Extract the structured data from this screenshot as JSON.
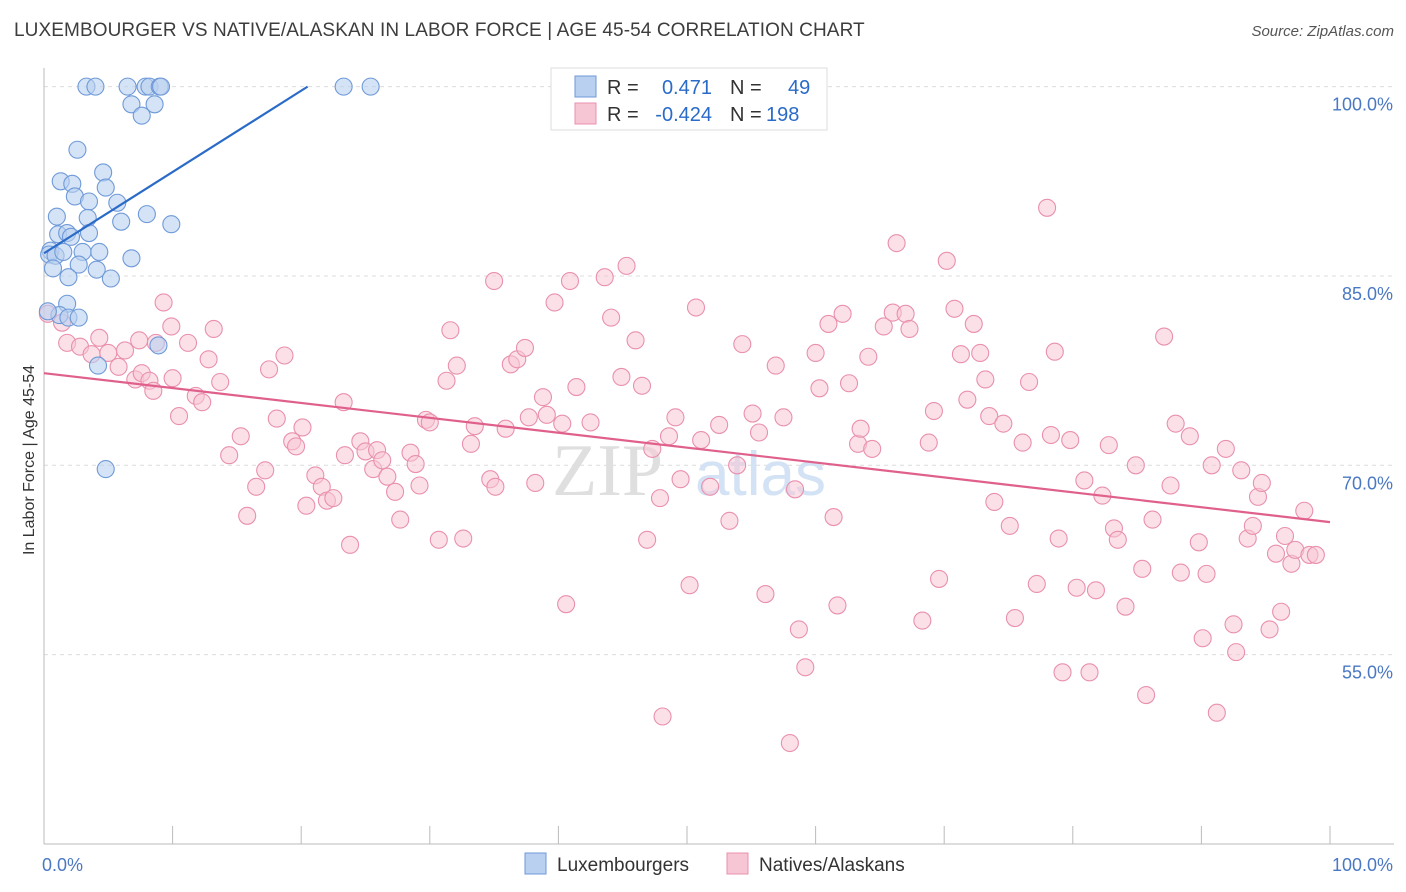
{
  "title": "LUXEMBOURGER VS NATIVE/ALASKAN IN LABOR FORCE | AGE 45-54 CORRELATION CHART",
  "source": "Source: ZipAtlas.com",
  "watermark": {
    "zip": "ZIP",
    "atlas": "atlas"
  },
  "colors": {
    "blue_fill": "#b9d0f0",
    "blue_stroke": "#6f9ad8",
    "blue_line": "#2a6bc8",
    "pink_fill": "#f7c6d5",
    "pink_stroke": "#e990ad",
    "pink_line": "#e0608c",
    "tick_text": "#4a78c2",
    "grid": "#dcdcdc"
  },
  "chart_data": {
    "type": "scatter",
    "ylabel": "In Labor Force | Age 45-54",
    "xlim": [
      0,
      100
    ],
    "ylim": [
      40,
      101
    ],
    "x_tick_labels": [
      {
        "value": 0,
        "label": "0.0%"
      },
      {
        "value": 100,
        "label": "100.0%"
      }
    ],
    "y_ticks": [
      {
        "value": 100,
        "label": "100.0%"
      },
      {
        "value": 85,
        "label": "85.0%"
      },
      {
        "value": 70,
        "label": "70.0%"
      },
      {
        "value": 55,
        "label": "55.0%"
      }
    ],
    "legend": {
      "rows": [
        {
          "r_label": "R =",
          "r_value": "0.471",
          "n_label": "N =",
          "n_value": "49"
        },
        {
          "r_label": "R =",
          "r_value": "-0.424",
          "n_label": "N =",
          "n_value": "198"
        }
      ]
    },
    "series": [
      {
        "name": "Luxemburgers",
        "trend": {
          "x1": 0,
          "y1": 86.8,
          "x2": 20.5,
          "y2": 100
        },
        "points": [
          [
            3.3,
            100
          ],
          [
            4,
            100
          ],
          [
            6.5,
            100
          ],
          [
            7.9,
            100
          ],
          [
            8.2,
            100
          ],
          [
            9,
            100
          ],
          [
            9.1,
            100
          ],
          [
            23.3,
            100
          ],
          [
            25.4,
            100
          ],
          [
            6.8,
            98.6
          ],
          [
            8.6,
            98.6
          ],
          [
            7.6,
            97.7
          ],
          [
            2.6,
            95
          ],
          [
            4.6,
            93.2
          ],
          [
            1.3,
            92.5
          ],
          [
            2.2,
            92.3
          ],
          [
            2.4,
            91.3
          ],
          [
            3.5,
            90.9
          ],
          [
            4.8,
            92
          ],
          [
            5.7,
            90.8
          ],
          [
            1,
            89.7
          ],
          [
            3.4,
            89.6
          ],
          [
            6,
            89.3
          ],
          [
            8,
            89.9
          ],
          [
            9.9,
            89.1
          ],
          [
            1.1,
            88.3
          ],
          [
            1.8,
            88.4
          ],
          [
            3.5,
            88.4
          ],
          [
            2.1,
            88.1
          ],
          [
            0.5,
            87
          ],
          [
            0.4,
            86.7
          ],
          [
            0.9,
            86.6
          ],
          [
            1.5,
            86.9
          ],
          [
            3,
            86.9
          ],
          [
            4.3,
            86.9
          ],
          [
            6.8,
            86.4
          ],
          [
            0.7,
            85.6
          ],
          [
            2.7,
            85.9
          ],
          [
            4.1,
            85.5
          ],
          [
            5.2,
            84.8
          ],
          [
            1.9,
            84.9
          ],
          [
            1.8,
            82.8
          ],
          [
            1.2,
            81.9
          ],
          [
            1.9,
            81.7
          ],
          [
            2.7,
            81.7
          ],
          [
            8.9,
            79.5
          ],
          [
            4.2,
            77.9
          ],
          [
            4.8,
            69.7
          ],
          [
            0.3,
            82.2
          ]
        ]
      },
      {
        "name": "Natives/Alaskans",
        "trend": {
          "x1": 0,
          "y1": 77.3,
          "x2": 100,
          "y2": 65.5
        },
        "points": [
          [
            0.3,
            82
          ],
          [
            1.4,
            81.3
          ],
          [
            1.8,
            79.7
          ],
          [
            2.8,
            79.4
          ],
          [
            3.7,
            78.8
          ],
          [
            4.3,
            80.1
          ],
          [
            5,
            78.9
          ],
          [
            5.8,
            77.8
          ],
          [
            6.3,
            79.1
          ],
          [
            7.1,
            76.8
          ],
          [
            7.6,
            77.3
          ],
          [
            7.4,
            79.9
          ],
          [
            8.2,
            76.7
          ],
          [
            8.5,
            75.9
          ],
          [
            8.7,
            79.7
          ],
          [
            9.3,
            82.9
          ],
          [
            9.9,
            81
          ],
          [
            10,
            76.9
          ],
          [
            10.5,
            73.9
          ],
          [
            11.2,
            79.7
          ],
          [
            11.8,
            75.5
          ],
          [
            12.3,
            75
          ],
          [
            12.8,
            78.4
          ],
          [
            13.2,
            80.8
          ],
          [
            13.7,
            76.6
          ],
          [
            14.4,
            70.8
          ],
          [
            15.3,
            72.3
          ],
          [
            15.8,
            66
          ],
          [
            16.5,
            68.3
          ],
          [
            17.2,
            69.6
          ],
          [
            17.5,
            77.6
          ],
          [
            18.1,
            73.7
          ],
          [
            18.7,
            78.7
          ],
          [
            19.3,
            71.9
          ],
          [
            19.6,
            71.5
          ],
          [
            20.1,
            73
          ],
          [
            20.4,
            66.8
          ],
          [
            21.1,
            69.2
          ],
          [
            21.6,
            68.3
          ],
          [
            22,
            67.2
          ],
          [
            22.5,
            67.4
          ],
          [
            23.3,
            75
          ],
          [
            23.4,
            70.8
          ],
          [
            23.8,
            63.7
          ],
          [
            24.6,
            71.9
          ],
          [
            25,
            71.1
          ],
          [
            25.6,
            69.7
          ],
          [
            25.9,
            71.2
          ],
          [
            26.3,
            70.4
          ],
          [
            26.7,
            69.1
          ],
          [
            27.3,
            67.9
          ],
          [
            27.7,
            65.7
          ],
          [
            28.5,
            71
          ],
          [
            28.9,
            70.1
          ],
          [
            29.2,
            68.4
          ],
          [
            29.7,
            73.6
          ],
          [
            30,
            73.4
          ],
          [
            30.7,
            64.1
          ],
          [
            31.3,
            76.7
          ],
          [
            31.6,
            80.7
          ],
          [
            32.1,
            77.9
          ],
          [
            32.6,
            64.2
          ],
          [
            33.2,
            71.7
          ],
          [
            33.5,
            73.1
          ],
          [
            34.7,
            68.9
          ],
          [
            35.1,
            68.3
          ],
          [
            35,
            84.6
          ],
          [
            35.9,
            72.9
          ],
          [
            36.3,
            78
          ],
          [
            36.8,
            78.4
          ],
          [
            37.4,
            79.3
          ],
          [
            37.7,
            73.8
          ],
          [
            38.2,
            68.6
          ],
          [
            38.8,
            75.4
          ],
          [
            39.1,
            74
          ],
          [
            39.7,
            82.9
          ],
          [
            40.3,
            73.3
          ],
          [
            40.6,
            59
          ],
          [
            40.9,
            84.6
          ],
          [
            41.4,
            76.2
          ],
          [
            42.5,
            73.4
          ],
          [
            43.6,
            84.9
          ],
          [
            44.1,
            81.7
          ],
          [
            44.9,
            77
          ],
          [
            45.3,
            85.8
          ],
          [
            46,
            79.9
          ],
          [
            46.5,
            76.3
          ],
          [
            46.9,
            64.1
          ],
          [
            47.3,
            71.3
          ],
          [
            47.9,
            67.4
          ],
          [
            48.1,
            50.1
          ],
          [
            48.6,
            72.3
          ],
          [
            49.1,
            73.8
          ],
          [
            49.5,
            68.9
          ],
          [
            50.2,
            60.5
          ],
          [
            50.7,
            82.5
          ],
          [
            51.1,
            72
          ],
          [
            51.8,
            68.3
          ],
          [
            52.5,
            73.2
          ],
          [
            53.3,
            65.6
          ],
          [
            53.9,
            70
          ],
          [
            54.3,
            79.6
          ],
          [
            55.1,
            74.1
          ],
          [
            55.6,
            72.6
          ],
          [
            56.1,
            59.8
          ],
          [
            56.9,
            77.9
          ],
          [
            57.5,
            73.8
          ],
          [
            58,
            48
          ],
          [
            58.4,
            68.1
          ],
          [
            58.7,
            57
          ],
          [
            59.2,
            54
          ],
          [
            60,
            78.9
          ],
          [
            60.3,
            76.1
          ],
          [
            61,
            81.2
          ],
          [
            61.4,
            65.9
          ],
          [
            61.7,
            58.9
          ],
          [
            62.1,
            82
          ],
          [
            62.6,
            76.5
          ],
          [
            63.3,
            71.7
          ],
          [
            63.5,
            72.9
          ],
          [
            64.1,
            78.6
          ],
          [
            64.4,
            71.3
          ],
          [
            65.3,
            81
          ],
          [
            66,
            82.1
          ],
          [
            66.3,
            87.6
          ],
          [
            67,
            82
          ],
          [
            67.3,
            80.8
          ],
          [
            68.3,
            57.7
          ],
          [
            68.8,
            71.8
          ],
          [
            69.2,
            74.3
          ],
          [
            69.6,
            61
          ],
          [
            70.2,
            86.2
          ],
          [
            70.8,
            82.4
          ],
          [
            71.3,
            78.8
          ],
          [
            71.8,
            75.2
          ],
          [
            72.3,
            81.2
          ],
          [
            72.8,
            78.9
          ],
          [
            73.2,
            76.8
          ],
          [
            73.5,
            73.9
          ],
          [
            73.9,
            67.1
          ],
          [
            74.6,
            73.3
          ],
          [
            75.1,
            65.2
          ],
          [
            75.5,
            57.9
          ],
          [
            76.1,
            71.8
          ],
          [
            76.6,
            76.6
          ],
          [
            77.2,
            60.6
          ],
          [
            78,
            90.4
          ],
          [
            78.3,
            72.4
          ],
          [
            78.6,
            79
          ],
          [
            78.9,
            64.2
          ],
          [
            79.2,
            53.6
          ],
          [
            79.8,
            72
          ],
          [
            80.3,
            60.3
          ],
          [
            80.9,
            68.8
          ],
          [
            81.3,
            53.6
          ],
          [
            81.8,
            60.1
          ],
          [
            82.3,
            67.6
          ],
          [
            82.8,
            71.6
          ],
          [
            83.2,
            65
          ],
          [
            83.5,
            64.1
          ],
          [
            84.1,
            58.8
          ],
          [
            84.9,
            70
          ],
          [
            85.4,
            61.8
          ],
          [
            85.7,
            51.8
          ],
          [
            86.2,
            65.7
          ],
          [
            87.1,
            80.2
          ],
          [
            87.6,
            68.4
          ],
          [
            88,
            73.3
          ],
          [
            88.4,
            61.5
          ],
          [
            89.1,
            72.3
          ],
          [
            89.8,
            63.9
          ],
          [
            90.1,
            56.3
          ],
          [
            90.4,
            61.4
          ],
          [
            90.8,
            70
          ],
          [
            91.2,
            50.4
          ],
          [
            91.9,
            71.3
          ],
          [
            92.5,
            57.4
          ],
          [
            92.7,
            55.2
          ],
          [
            93.1,
            69.6
          ],
          [
            93.6,
            64.2
          ],
          [
            94,
            65.2
          ],
          [
            94.4,
            67.5
          ],
          [
            94.7,
            68.6
          ],
          [
            95.3,
            57
          ],
          [
            95.8,
            63
          ],
          [
            96.2,
            58.4
          ],
          [
            96.5,
            64.4
          ],
          [
            97,
            62.2
          ],
          [
            97.3,
            63.3
          ],
          [
            98,
            66.4
          ],
          [
            98.4,
            62.9
          ],
          [
            98.9,
            62.9
          ]
        ]
      }
    ]
  },
  "bottom_legend": [
    {
      "label": "Luxembourgers"
    },
    {
      "label": "Natives/Alaskans"
    }
  ]
}
